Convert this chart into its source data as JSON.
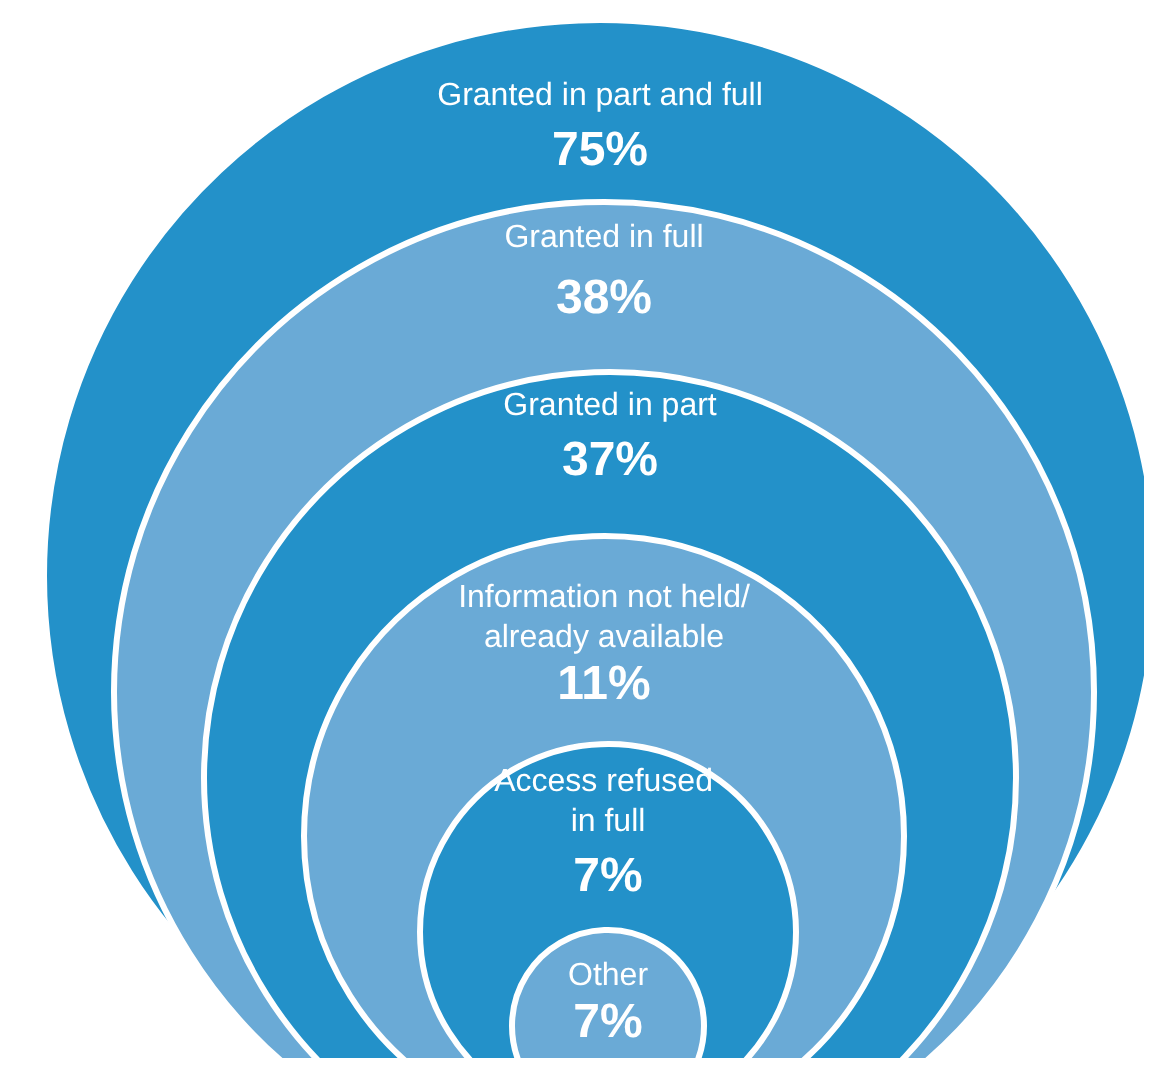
{
  "chart_data": {
    "type": "other",
    "categories": [
      "Granted in part and full",
      "Granted in full",
      "Granted in part",
      "Information not held/already available",
      "Access refused in full",
      "Other"
    ],
    "values": [
      75,
      38,
      37,
      11,
      7,
      7
    ],
    "value_labels": [
      "75%",
      "38%",
      "37%",
      "11%",
      "7%",
      "7%"
    ],
    "colors": [
      "#2391c9",
      "#6aaad6",
      "#2391c9",
      "#6aaad6",
      "#2391c9",
      "#6aaad6"
    ]
  }
}
